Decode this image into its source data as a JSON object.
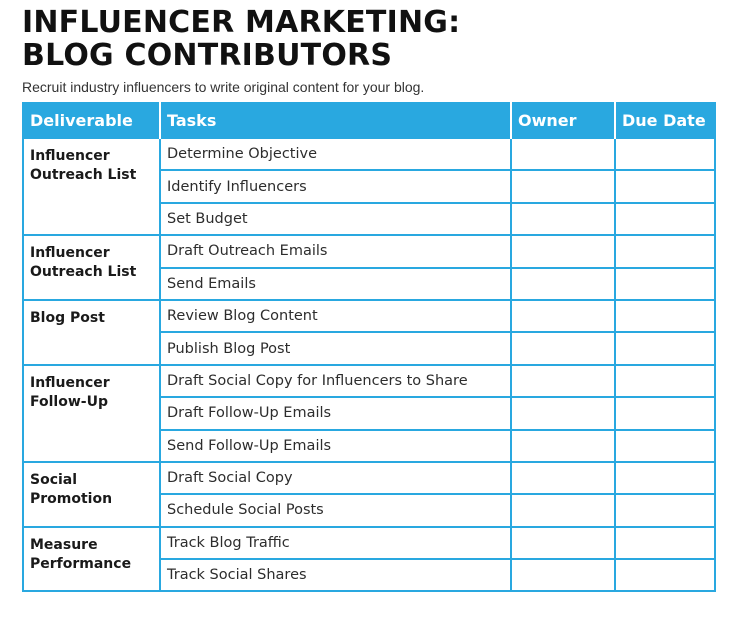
{
  "header": {
    "title": "INFLUENCER MARKETING:\nBLOG CONTRIBUTORS",
    "subtitle": "Recruit industry influencers to write original content for your blog."
  },
  "table": {
    "columns": [
      "Deliverable",
      "Tasks",
      "Owner",
      "Due Date"
    ],
    "groups": [
      {
        "deliverable": "Influencer Outreach List",
        "tasks": [
          "Determine Objective",
          "Identify Influencers",
          "Set Budget"
        ]
      },
      {
        "deliverable": "Influencer Outreach List",
        "tasks": [
          "Draft Outreach Emails",
          "Send Emails"
        ]
      },
      {
        "deliverable": "Blog Post",
        "tasks": [
          "Review Blog Content",
          "Publish Blog Post"
        ]
      },
      {
        "deliverable": "Influencer Follow-Up",
        "tasks": [
          "Draft Social Copy for Influencers to Share",
          "Draft Follow-Up Emails",
          "Send Follow-Up Emails"
        ]
      },
      {
        "deliverable": "Social Promotion",
        "tasks": [
          "Draft Social Copy",
          "Schedule Social Posts"
        ]
      },
      {
        "deliverable": "Measure Performance",
        "tasks": [
          "Track Blog Traffic",
          "Track Social Shares"
        ]
      }
    ]
  },
  "colors": {
    "accent": "#29a8e0",
    "header_text": "#ffffff",
    "title_text": "#111111"
  }
}
